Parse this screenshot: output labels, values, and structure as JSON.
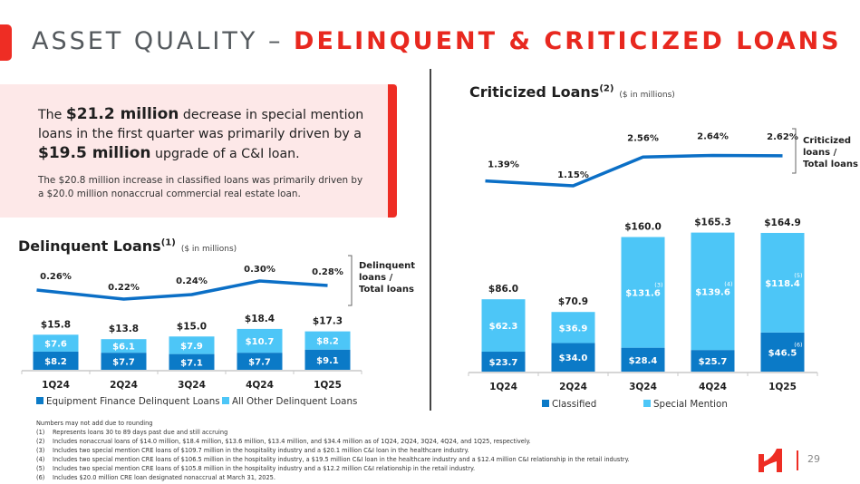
{
  "header": {
    "title_part1": "ASSET QUALITY – ",
    "title_part2": "DELINQUENT & CRITICIZED LOANS"
  },
  "callout": {
    "main_pre": "The ",
    "main_bold1": "$21.2 million",
    "main_mid": " decrease in special mention loans in the first quarter was primarily driven by a ",
    "main_bold2": "$19.5 million",
    "main_post": " upgrade of a C&I loan.",
    "sub": "The $20.8 million increase in classified loans was primarily driven by a $20.0 million nonaccrual commercial real estate loan."
  },
  "colors": {
    "brand_red": "#ee2d24",
    "dark_blue": "#0b7ac7",
    "light_blue": "#4dc6f7",
    "line_blue": "#0b6fc6"
  },
  "chart_data": [
    {
      "type": "bar",
      "stacked": true,
      "title": "Delinquent Loans",
      "title_sup": "(1)",
      "unit_note": "($ in millions)",
      "categories": [
        "1Q24",
        "2Q24",
        "3Q24",
        "4Q24",
        "1Q25"
      ],
      "series": [
        {
          "name": "Equipment Finance Delinquent Loans",
          "values": [
            8.2,
            7.7,
            7.1,
            7.7,
            9.1
          ],
          "labels": [
            "$8.2",
            "$7.7",
            "$7.1",
            "$7.7",
            "$9.1"
          ],
          "color": "#0b7ac7"
        },
        {
          "name": "All Other Delinquent Loans",
          "values": [
            7.6,
            6.1,
            7.9,
            10.7,
            8.2
          ],
          "labels": [
            "$7.6",
            "$6.1",
            "$7.9",
            "$10.7",
            "$8.2"
          ],
          "color": "#4dc6f7"
        }
      ],
      "totals": [
        15.8,
        13.8,
        15.0,
        18.4,
        17.3
      ],
      "total_labels": [
        "$15.8",
        "$13.8",
        "$15.0",
        "$18.4",
        "$17.3"
      ],
      "ratio_line": {
        "name": "Delinquent loans / Total loans",
        "label_lines": [
          "Delinquent",
          "loans /",
          "Total loans"
        ],
        "values": [
          0.26,
          0.22,
          0.24,
          0.3,
          0.28
        ],
        "labels": [
          "0.26%",
          "0.22%",
          "0.24%",
          "0.30%",
          "0.28%"
        ]
      },
      "legend": [
        "Equipment Finance Delinquent Loans",
        "All Other Delinquent Loans"
      ],
      "legend_position": "bottom"
    },
    {
      "type": "bar",
      "stacked": true,
      "title": "Criticized Loans",
      "title_sup": "(2)",
      "unit_note": "($ in millions)",
      "categories": [
        "1Q24",
        "2Q24",
        "3Q24",
        "4Q24",
        "1Q25"
      ],
      "series": [
        {
          "name": "Classified",
          "values": [
            23.7,
            34.0,
            28.4,
            25.7,
            46.5
          ],
          "labels": [
            "$23.7",
            "$34.0",
            "$28.4",
            "$25.7",
            "$46.5"
          ],
          "footnotes": [
            "",
            "",
            "",
            "",
            "(6)"
          ],
          "color": "#0b7ac7"
        },
        {
          "name": "Special Mention",
          "values": [
            62.3,
            36.9,
            131.6,
            139.6,
            118.4
          ],
          "labels": [
            "$62.3",
            "$36.9",
            "$131.6",
            "$139.6",
            "$118.4"
          ],
          "footnotes": [
            "",
            "",
            "(3)",
            "(4)",
            "(5)"
          ],
          "color": "#4dc6f7"
        }
      ],
      "totals": [
        86.0,
        70.9,
        160.0,
        165.3,
        164.9
      ],
      "total_labels": [
        "$86.0",
        "$70.9",
        "$160.0",
        "$165.3",
        "$164.9"
      ],
      "ratio_line": {
        "name": "Criticized loans / Total loans",
        "label_lines": [
          "Criticized",
          "loans /",
          "Total loans"
        ],
        "values": [
          1.39,
          1.15,
          2.56,
          2.64,
          2.62
        ],
        "labels": [
          "1.39%",
          "1.15%",
          "2.56%",
          "2.64%",
          "2.62%"
        ]
      },
      "legend": [
        "Classified",
        "Special Mention"
      ],
      "legend_position": "bottom"
    }
  ],
  "footnotes": {
    "intro": "Numbers may not add due to rounding",
    "items": [
      {
        "num": "(1)",
        "text": "Represents loans 30 to 89 days past due and still accruing"
      },
      {
        "num": "(2)",
        "text": "Includes nonaccrual loans of $14.0 million, $18.4 million, $13.6 million, $13.4 million, and $34.4 million as of 1Q24, 2Q24, 3Q24, 4Q24, and 1Q25, respectively."
      },
      {
        "num": "(3)",
        "text": "Includes two special mention CRE loans of $109.7 million in the hospitality industry and a $20.1 million C&I loan in the healthcare industry."
      },
      {
        "num": "(4)",
        "text": "Includes two special mention CRE loans of $106.5 million in the hospitality industry, a $19.5 million C&I loan in the healthcare industry and a $12.4 million C&I relationship in the retail industry."
      },
      {
        "num": "(5)",
        "text": "Includes two special mention CRE loans of $105.8 million in the hospitality industry and a $12.2 million C&I relationship in the retail industry."
      },
      {
        "num": "(6)",
        "text": "Includes $20.0 million CRE loan designated nonaccrual at March 31, 2025."
      }
    ]
  },
  "page": {
    "number": "29",
    "logo_icon": "brand-logo-icon"
  }
}
